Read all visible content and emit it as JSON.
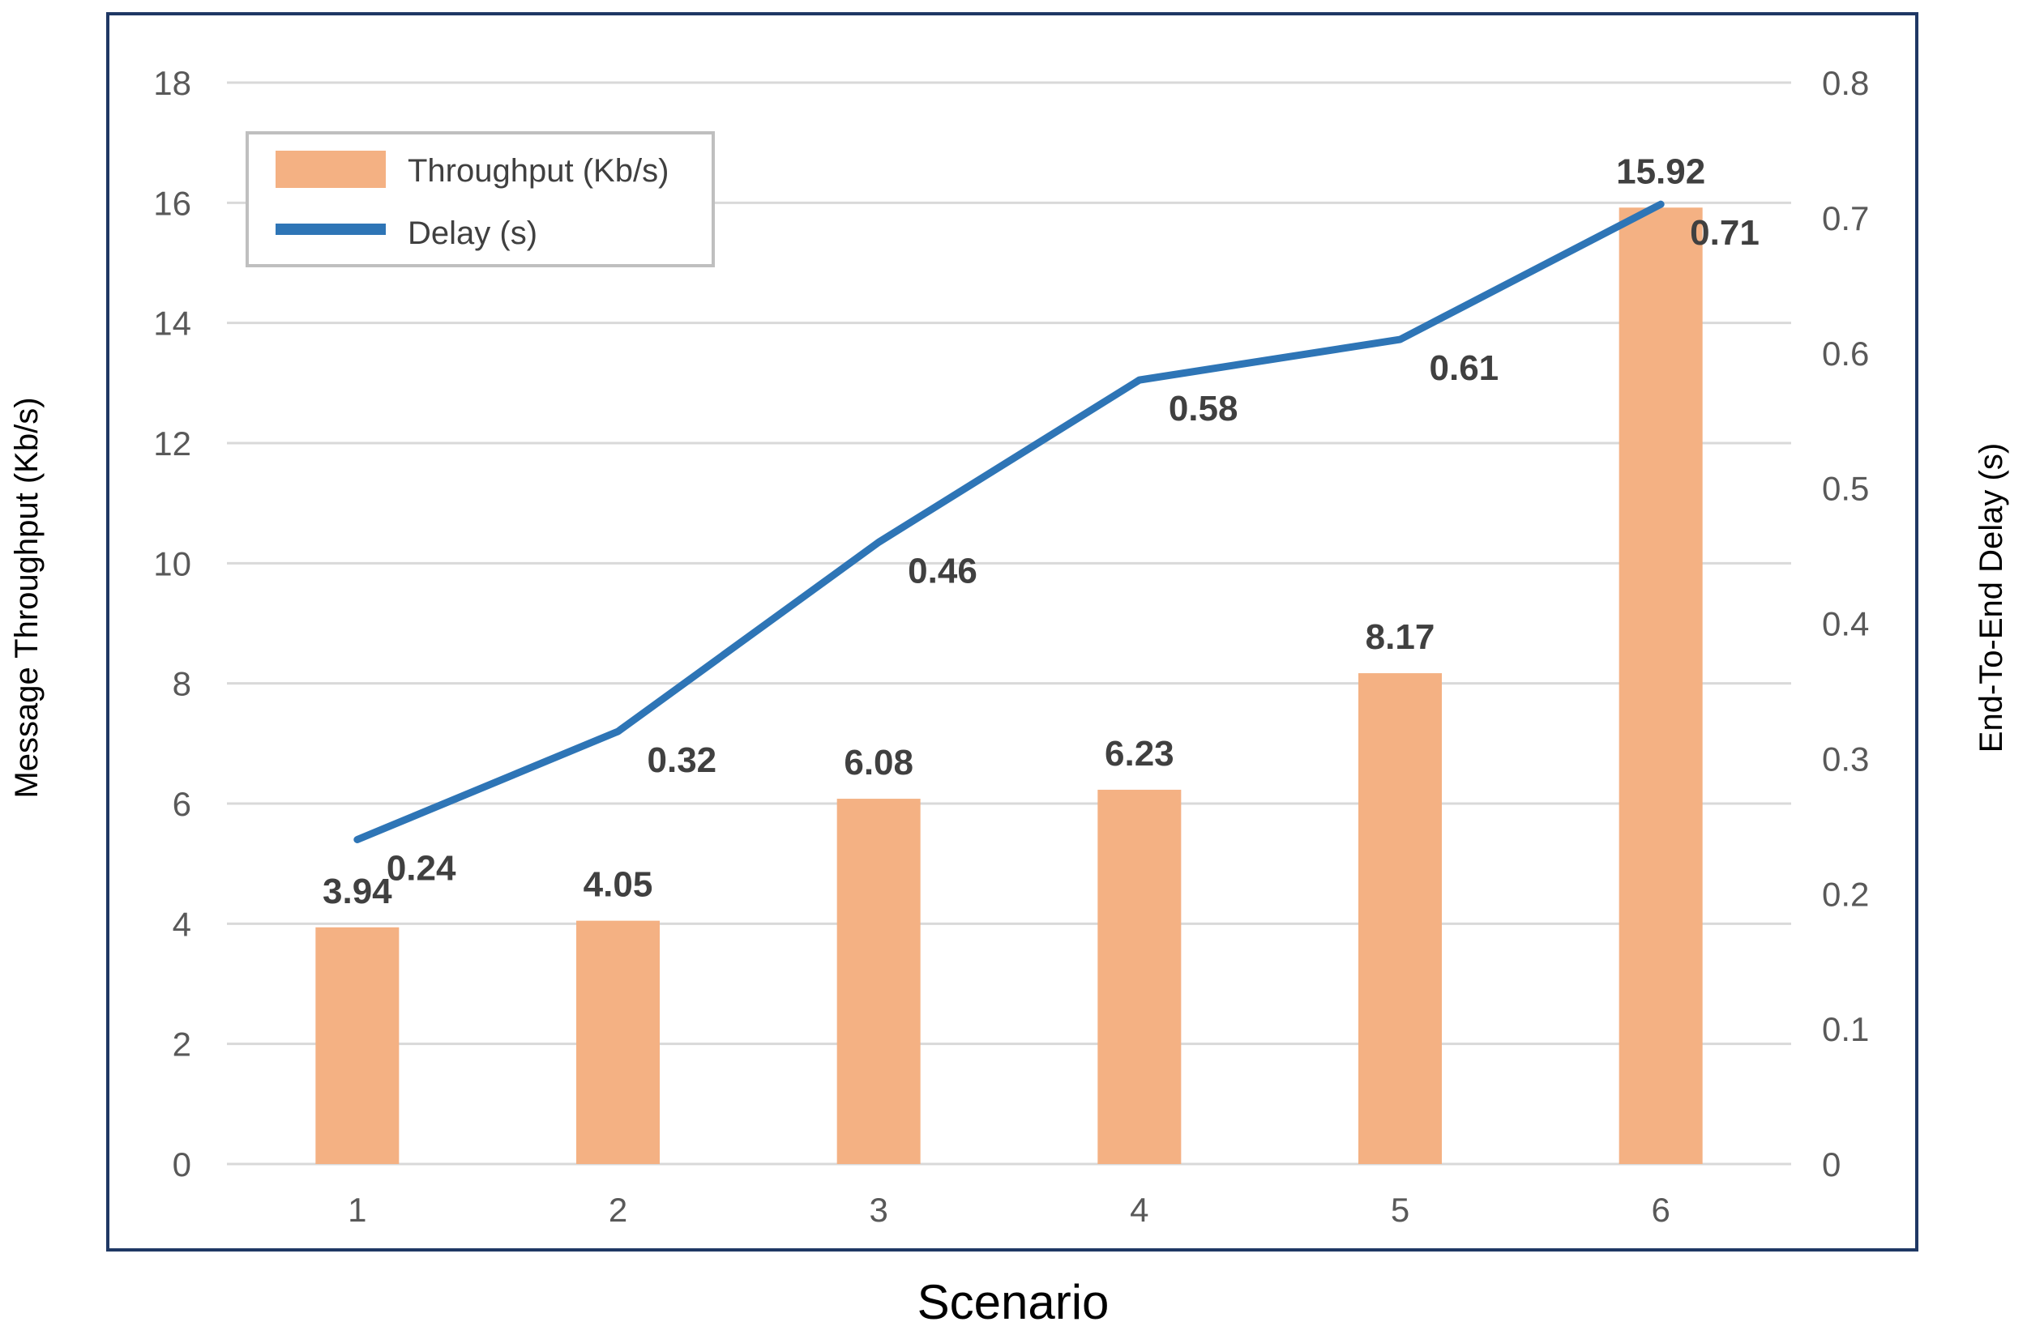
{
  "chart_data": {
    "type": "bar",
    "categories": [
      "1",
      "2",
      "3",
      "4",
      "5",
      "6"
    ],
    "series": [
      {
        "name": "Throughput (Kb/s)",
        "type": "bar",
        "axis": "left",
        "values": [
          3.94,
          4.05,
          6.08,
          6.23,
          8.17,
          15.92
        ],
        "color": "#F4B183"
      },
      {
        "name": "Delay (s)",
        "type": "line",
        "axis": "right",
        "values": [
          0.24,
          0.32,
          0.46,
          0.58,
          0.61,
          0.71
        ],
        "color": "#2E75B6"
      }
    ],
    "bar_labels": [
      "3.94",
      "4.05",
      "6.08",
      "6.23",
      "8.17",
      "15.92"
    ],
    "line_labels": [
      "0.24",
      "0.32",
      "0.46",
      "0.58",
      "0.61",
      "0.71"
    ],
    "xlabel": "Scenario",
    "ylabel": "Message Throughput (Kb/s)",
    "ylabel_right": "End-To-End Delay (s)",
    "ylim": [
      0,
      18
    ],
    "ylim_right": [
      0,
      0.8
    ],
    "yticks": [
      "0",
      "2",
      "4",
      "6",
      "8",
      "10",
      "12",
      "14",
      "16",
      "18"
    ],
    "yticks_right": [
      "0",
      "0.1",
      "0.2",
      "0.3",
      "0.4",
      "0.5",
      "0.6",
      "0.7",
      "0.8"
    ],
    "grid": true,
    "legend_position": "top-left",
    "border_color": "#1F3864"
  }
}
